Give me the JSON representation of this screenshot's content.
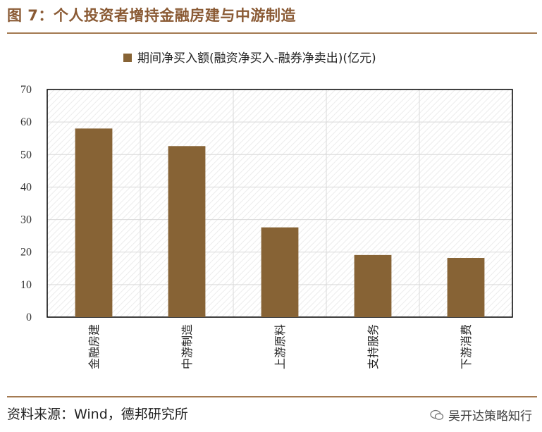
{
  "header": {
    "title": "图 7：个人投资者增持金融房建与中游制造"
  },
  "footer": {
    "source": "资料来源：Wind，德邦研究所",
    "watermark": "吴开达策略知行"
  },
  "colors": {
    "bar": "#876335",
    "accent": "#a47a52",
    "grid": "#d9d9d9"
  },
  "chart_data": {
    "type": "bar",
    "categories": [
      "金融房建",
      "中游制造",
      "上游原料",
      "支持服务",
      "下游消费"
    ],
    "series": [
      {
        "name": "期间净买入额(融资净买入-融券净卖出)(亿元)",
        "values": [
          58,
          52.6,
          27.6,
          19.1,
          18.2
        ]
      }
    ],
    "ylim": [
      0,
      70
    ],
    "yticks": [
      0,
      10,
      20,
      30,
      40,
      50,
      60,
      70
    ],
    "grid": true,
    "legend": "top-center"
  }
}
